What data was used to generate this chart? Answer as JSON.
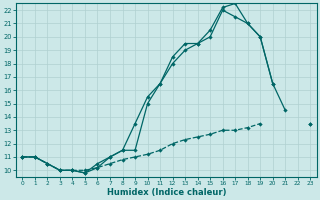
{
  "xlabel": "Humidex (Indice chaleur)",
  "xlim": [
    -0.5,
    23.5
  ],
  "ylim": [
    9.5,
    22.5
  ],
  "xticks": [
    0,
    1,
    2,
    3,
    4,
    5,
    6,
    7,
    8,
    9,
    10,
    11,
    12,
    13,
    14,
    15,
    16,
    17,
    18,
    19,
    20,
    21,
    22,
    23
  ],
  "yticks": [
    10,
    11,
    12,
    13,
    14,
    15,
    16,
    17,
    18,
    19,
    20,
    21,
    22
  ],
  "background_color": "#cce8e8",
  "grid_color": "#b0d0d0",
  "line_color": "#006666",
  "line_dashed_x": [
    0,
    1,
    2,
    3,
    4,
    5,
    6,
    7,
    8,
    9,
    10,
    11,
    12,
    13,
    14,
    15,
    16,
    17,
    18,
    19
  ],
  "line_dashed_y": [
    11.0,
    11.0,
    10.5,
    10.0,
    10.0,
    10.0,
    10.2,
    10.5,
    10.8,
    11.0,
    11.2,
    11.5,
    12.0,
    12.3,
    12.5,
    12.7,
    13.0,
    13.0,
    13.2,
    13.5
  ],
  "line2_segments": [
    {
      "x": [
        0,
        1,
        2,
        3,
        4,
        5,
        6,
        7,
        8,
        9,
        10,
        11,
        12,
        13,
        14,
        15,
        16,
        17,
        18,
        19,
        20,
        21
      ],
      "y": [
        11.0,
        11.0,
        10.5,
        10.0,
        10.0,
        9.8,
        10.2,
        11.0,
        11.5,
        13.5,
        15.5,
        16.5,
        18.5,
        19.5,
        19.5,
        20.5,
        22.2,
        22.5,
        21.0,
        20.0,
        16.5,
        14.5
      ]
    },
    {
      "x": [
        23
      ],
      "y": [
        13.5
      ]
    }
  ],
  "line3_segments": [
    {
      "x": [
        0,
        1,
        2,
        3,
        4,
        5,
        6,
        7,
        8,
        9,
        10,
        11,
        12,
        13,
        14,
        15,
        16,
        17,
        18,
        19,
        20
      ],
      "y": [
        11.0,
        11.0,
        10.5,
        10.0,
        10.0,
        9.8,
        10.5,
        11.0,
        11.5,
        11.5,
        15.0,
        16.5,
        18.0,
        19.0,
        19.5,
        20.0,
        22.0,
        21.5,
        21.0,
        20.0,
        16.5
      ]
    },
    {
      "x": [
        23
      ],
      "y": [
        13.5
      ]
    }
  ]
}
